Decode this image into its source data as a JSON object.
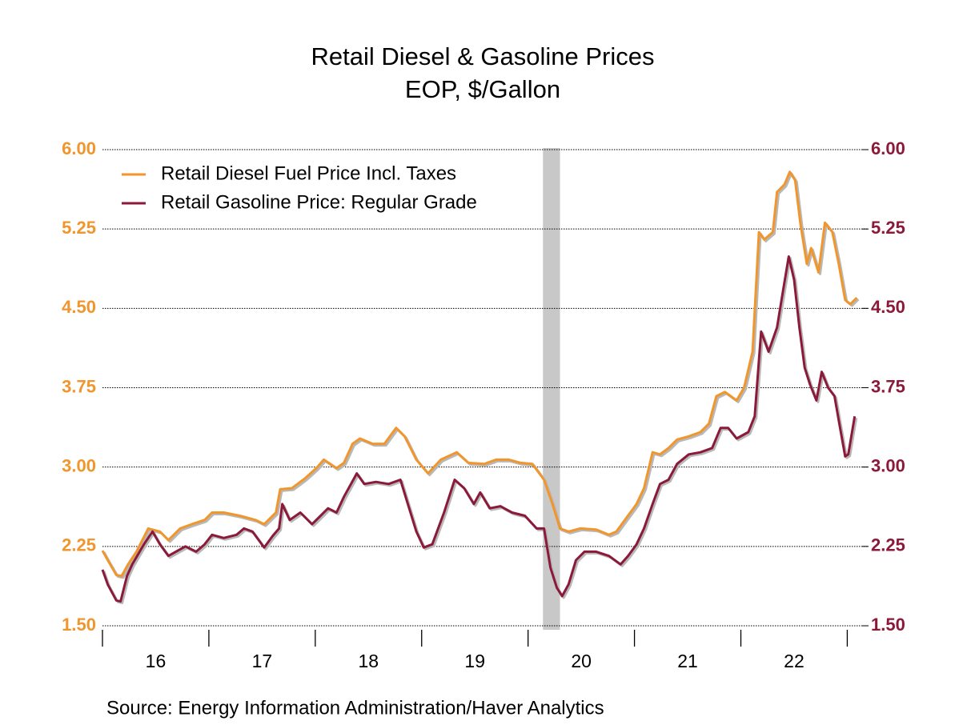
{
  "chart_data": {
    "type": "line",
    "title": "Retail Diesel & Gasoline Prices",
    "subtitle": "EOP, $/Gallon",
    "source": "Source:  Energy Information Administration/Haver Analytics",
    "xlim": [
      2016,
      2023.2
    ],
    "xticks": [
      {
        "value": 2016.5,
        "label": "16"
      },
      {
        "value": 2017.5,
        "label": "17"
      },
      {
        "value": 2018.5,
        "label": "18"
      },
      {
        "value": 2019.5,
        "label": "19"
      },
      {
        "value": 2020.5,
        "label": "20"
      },
      {
        "value": 2021.5,
        "label": "21"
      },
      {
        "value": 2022.5,
        "label": "22"
      }
    ],
    "x_tick_marks": [
      2016,
      2017,
      2018,
      2019,
      2020,
      2021,
      2022,
      2023
    ],
    "ylim": [
      1.5,
      6
    ],
    "yticks": [
      {
        "value": 1.5,
        "label": "1.50"
      },
      {
        "value": 2.25,
        "label": "2.25"
      },
      {
        "value": 3,
        "label": "3.00"
      },
      {
        "value": 3.75,
        "label": "3.75"
      },
      {
        "value": 4.5,
        "label": "4.50"
      },
      {
        "value": 5.25,
        "label": "5.25"
      },
      {
        "value": 6,
        "label": "6.00"
      }
    ],
    "y2lim": [
      1.5,
      6
    ],
    "y2ticks": [
      {
        "value": 1.5,
        "label": "1.50"
      },
      {
        "value": 2.25,
        "label": "2.25"
      },
      {
        "value": 3,
        "label": "3.00"
      },
      {
        "value": 3.75,
        "label": "3.75"
      },
      {
        "value": 4.5,
        "label": "4.50"
      },
      {
        "value": 5.25,
        "label": "5.25"
      },
      {
        "value": 6,
        "label": "6.00"
      }
    ],
    "grid": true,
    "legend": "upper left",
    "shaded_periods": [
      [
        2020.14,
        2020.3
      ]
    ],
    "series": [
      {
        "name": "Retail Diesel Fuel Price Incl. Taxes",
        "color": "#f0962d",
        "x": [
          2016.0,
          2016.05,
          2016.13,
          2016.18,
          2016.24,
          2016.32,
          2016.43,
          2016.54,
          2016.62,
          2016.73,
          2016.84,
          2016.96,
          2017.03,
          2017.14,
          2017.29,
          2017.44,
          2017.52,
          2017.63,
          2017.67,
          2017.78,
          2017.9,
          2018.01,
          2018.08,
          2018.2,
          2018.27,
          2018.35,
          2018.42,
          2018.54,
          2018.65,
          2018.76,
          2018.84,
          2018.95,
          2019.06,
          2019.18,
          2019.33,
          2019.44,
          2019.59,
          2019.7,
          2019.82,
          2019.93,
          2020.04,
          2020.15,
          2020.23,
          2020.3,
          2020.38,
          2020.49,
          2020.64,
          2020.76,
          2020.83,
          2020.91,
          2021.02,
          2021.09,
          2021.17,
          2021.24,
          2021.32,
          2021.4,
          2021.51,
          2021.62,
          2021.7,
          2021.77,
          2021.85,
          2021.96,
          2022.03,
          2022.11,
          2022.17,
          2022.22,
          2022.3,
          2022.34,
          2022.41,
          2022.46,
          2022.51,
          2022.56,
          2022.62,
          2022.66,
          2022.73,
          2022.79,
          2022.86,
          2022.92,
          2022.98,
          2023.03,
          2023.09
        ],
        "values": [
          2.21,
          2.12,
          1.98,
          1.97,
          2.08,
          2.2,
          2.42,
          2.39,
          2.31,
          2.42,
          2.46,
          2.5,
          2.57,
          2.57,
          2.54,
          2.5,
          2.46,
          2.57,
          2.79,
          2.8,
          2.89,
          2.99,
          3.07,
          2.99,
          3.04,
          3.22,
          3.27,
          3.22,
          3.22,
          3.37,
          3.29,
          3.07,
          2.94,
          3.07,
          3.14,
          3.04,
          3.03,
          3.07,
          3.07,
          3.04,
          3.03,
          2.88,
          2.65,
          2.42,
          2.39,
          2.42,
          2.41,
          2.36,
          2.39,
          2.5,
          2.65,
          2.8,
          3.14,
          3.12,
          3.18,
          3.26,
          3.29,
          3.33,
          3.41,
          3.67,
          3.71,
          3.63,
          3.75,
          4.09,
          5.22,
          5.15,
          5.22,
          5.6,
          5.67,
          5.79,
          5.71,
          5.3,
          4.92,
          5.07,
          4.84,
          5.31,
          5.22,
          4.92,
          4.58,
          4.54,
          4.6
        ]
      },
      {
        "name": "Retail Gasoline Price: Regular Grade",
        "color": "#8b1a3a",
        "axis": "y2",
        "x": [
          2016.0,
          2016.05,
          2016.13,
          2016.17,
          2016.23,
          2016.28,
          2016.39,
          2016.47,
          2016.54,
          2016.62,
          2016.69,
          2016.78,
          2016.88,
          2016.96,
          2017.03,
          2017.14,
          2017.26,
          2017.33,
          2017.41,
          2017.52,
          2017.6,
          2017.66,
          2017.69,
          2017.76,
          2017.86,
          2017.97,
          2018.05,
          2018.12,
          2018.2,
          2018.27,
          2018.39,
          2018.46,
          2018.57,
          2018.69,
          2018.8,
          2018.87,
          2018.95,
          2019.02,
          2019.1,
          2019.21,
          2019.31,
          2019.4,
          2019.49,
          2019.55,
          2019.64,
          2019.74,
          2019.85,
          2019.97,
          2020.08,
          2020.15,
          2020.21,
          2020.27,
          2020.32,
          2020.38,
          2020.45,
          2020.53,
          2020.64,
          2020.76,
          2020.87,
          2020.94,
          2021.02,
          2021.09,
          2021.17,
          2021.24,
          2021.32,
          2021.4,
          2021.51,
          2021.62,
          2021.73,
          2021.81,
          2021.88,
          2021.96,
          2022.07,
          2022.13,
          2022.19,
          2022.26,
          2022.34,
          2022.4,
          2022.45,
          2022.5,
          2022.55,
          2022.6,
          2022.65,
          2022.71,
          2022.76,
          2022.82,
          2022.88,
          2022.92,
          2022.98,
          2023.01,
          2023.07
        ],
        "values": [
          2.03,
          1.89,
          1.74,
          1.73,
          1.97,
          2.08,
          2.27,
          2.39,
          2.27,
          2.16,
          2.2,
          2.25,
          2.2,
          2.27,
          2.36,
          2.33,
          2.36,
          2.42,
          2.39,
          2.24,
          2.35,
          2.42,
          2.65,
          2.5,
          2.57,
          2.46,
          2.54,
          2.61,
          2.57,
          2.72,
          2.94,
          2.84,
          2.86,
          2.84,
          2.88,
          2.65,
          2.39,
          2.24,
          2.27,
          2.57,
          2.88,
          2.8,
          2.65,
          2.76,
          2.61,
          2.63,
          2.57,
          2.54,
          2.42,
          2.42,
          2.05,
          1.86,
          1.78,
          1.89,
          2.12,
          2.2,
          2.2,
          2.16,
          2.08,
          2.16,
          2.27,
          2.42,
          2.65,
          2.84,
          2.88,
          3.03,
          3.12,
          3.14,
          3.18,
          3.37,
          3.37,
          3.27,
          3.33,
          3.48,
          4.28,
          4.09,
          4.32,
          4.69,
          4.99,
          4.77,
          4.32,
          3.94,
          3.78,
          3.63,
          3.9,
          3.75,
          3.67,
          3.44,
          3.1,
          3.12,
          3.48
        ]
      }
    ]
  }
}
